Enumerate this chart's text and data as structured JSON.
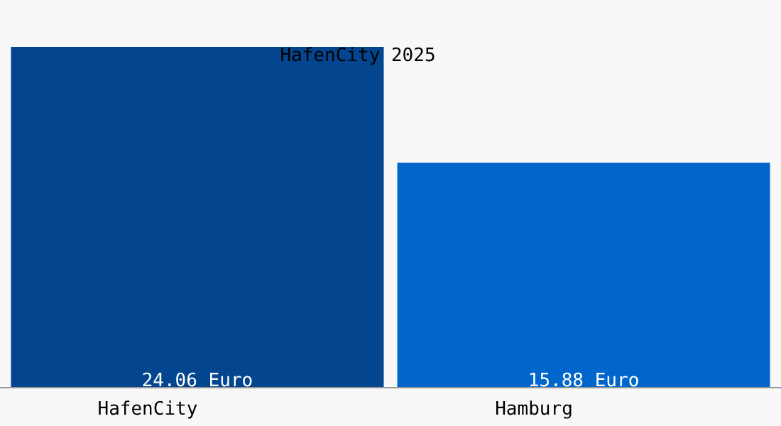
{
  "chart_data": {
    "type": "bar",
    "title": "HafenCity 2025",
    "categories": [
      "HafenCity",
      "Hamburg"
    ],
    "values": [
      24.06,
      15.88
    ],
    "colors": [
      "#03468f",
      "#0066cc"
    ],
    "value_labels": [
      "24.06 Euro",
      "15.88 Euro"
    ]
  }
}
